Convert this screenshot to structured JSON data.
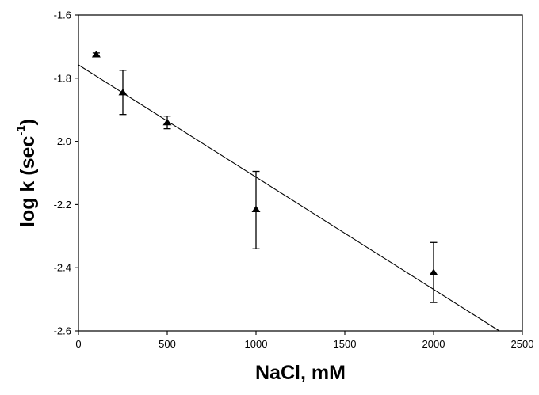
{
  "chart_data": {
    "type": "scatter",
    "title": "",
    "xlabel": "NaCl, mM",
    "ylabel": {
      "main": "log k (sec",
      "superscript": "-1",
      "close": ")"
    },
    "xlim": [
      0,
      2500
    ],
    "ylim": [
      -2.6,
      -1.6
    ],
    "x_ticks": [
      0,
      500,
      1000,
      1500,
      2000,
      2500
    ],
    "x_tick_labels": [
      "0",
      "500",
      "1000",
      "1500",
      "2000",
      "2500"
    ],
    "y_ticks": [
      -1.6,
      -1.8,
      -2.0,
      -2.2,
      -2.4,
      -2.6
    ],
    "y_tick_labels": [
      "-1.6",
      "-1.8",
      "-2.0",
      "-2.2",
      "-2.4",
      "-2.6"
    ],
    "grid": false,
    "legend": "none",
    "marker": "filled-triangle",
    "series": [
      {
        "x": [
          100,
          250,
          500,
          1000,
          2000
        ],
        "y": [
          -1.725,
          -1.845,
          -1.94,
          -2.215,
          -2.415
        ],
        "err_low": [
          -1.73,
          -1.915,
          -1.96,
          -2.34,
          -2.51
        ],
        "err_high": [
          -1.72,
          -1.775,
          -1.92,
          -2.095,
          -2.32
        ]
      }
    ],
    "fit_line": {
      "x": [
        0,
        2370
      ],
      "y": [
        -1.758,
        -2.6
      ]
    },
    "colors": {
      "marker": "#000000",
      "line": "#000000",
      "axes": "#000000"
    }
  }
}
